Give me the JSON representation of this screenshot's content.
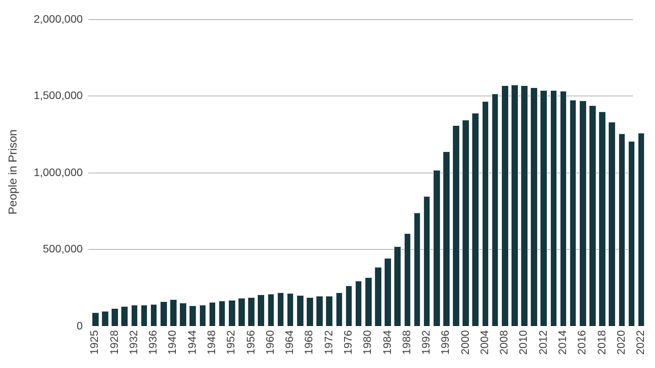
{
  "chart_data": {
    "type": "bar",
    "title": "",
    "xlabel": "",
    "ylabel": "People in Prison",
    "ylim": [
      0,
      2000000
    ],
    "grid": "horizontal-only",
    "legend": "none",
    "bar_color": "#17373f",
    "bar_edge_color": "#d9e4e8",
    "gridline_color": "#a8a8a8",
    "text_color": "#3b3b3b",
    "background_color": "#ffffff",
    "ytick_values": [
      0,
      500000,
      1000000,
      1500000,
      2000000
    ],
    "ytick_labels": [
      "0",
      "500,000",
      "1,000,000",
      "1,500,000",
      "2,000,000"
    ],
    "xtick_labels_shown": [
      "1925",
      "1928",
      "1932",
      "1936",
      "1940",
      "1944",
      "1948",
      "1952",
      "1956",
      "1960",
      "1964",
      "1968",
      "1972",
      "1976",
      "1980",
      "1984",
      "1988",
      "1992",
      "1996",
      "2000",
      "2004",
      "2008",
      "2010",
      "2012",
      "2014",
      "2016",
      "2018",
      "2020",
      "2022"
    ],
    "xtick_rotation_degrees": 90,
    "categories": [
      1925,
      1926,
      1928,
      1930,
      1932,
      1934,
      1936,
      1938,
      1940,
      1942,
      1944,
      1946,
      1948,
      1950,
      1952,
      1954,
      1956,
      1958,
      1960,
      1962,
      1964,
      1966,
      1968,
      1970,
      1972,
      1974,
      1976,
      1978,
      1980,
      1982,
      1984,
      1986,
      1988,
      1990,
      1992,
      1994,
      1996,
      1998,
      2000,
      2002,
      2004,
      2006,
      2008,
      2009,
      2010,
      2011,
      2012,
      2013,
      2014,
      2015,
      2016,
      2017,
      2018,
      2019,
      2020,
      2021,
      2022
    ],
    "values": [
      91669,
      97991,
      116390,
      129453,
      137997,
      138316,
      145038,
      160285,
      173706,
      150384,
      132456,
      140079,
      155977,
      166123,
      168233,
      182901,
      189565,
      205643,
      212953,
      218830,
      214336,
      199654,
      187914,
      196429,
      196092,
      218466,
      262833,
      294396,
      320000,
      385000,
      443398,
      522084,
      603732,
      739980,
      846277,
      1016691,
      1137722,
      1310000,
      1345000,
      1390000,
      1465000,
      1515000,
      1570000,
      1572000,
      1570000,
      1555000,
      1540000,
      1538000,
      1532000,
      1475000,
      1470000,
      1440000,
      1400000,
      1330000,
      1256000,
      1206000,
      1260000
    ]
  }
}
